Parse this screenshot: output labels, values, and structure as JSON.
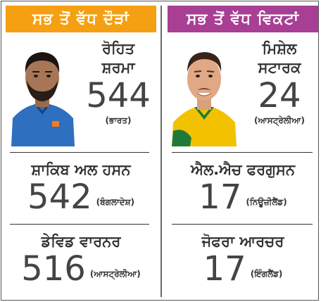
{
  "runs": {
    "header": "ਸਭ ਤੋਂ ਵੱਧ ਦੌੜਾਂ",
    "top": {
      "name_line1": "ਰੋਹਿਤ",
      "name_line2": "ਸ਼ਰਮਾ",
      "value": "544",
      "country": "(ਭਾਰਤ)"
    },
    "second": {
      "name": "ਸ਼ਾਕਿਬ ਅਲ ਹਸਨ",
      "value": "542",
      "country": "(ਬੰਗਲਾਦੇਸ਼)"
    },
    "third": {
      "name": "ਡੇਵਿਡ ਵਾਰਨਰ",
      "value": "516",
      "country": "(ਆਸਟ੍ਰੇਲੀਆ)"
    }
  },
  "wickets": {
    "header": "ਸਭ ਤੋਂ ਵੱਧ ਵਿਕਟਾਂ",
    "top": {
      "name_line1": "ਮਿਸ਼ੇਲ",
      "name_line2": "ਸਟਾਰਕ",
      "value": "24",
      "country": "(ਆਸਟ੍ਰੇਲੀਆ)"
    },
    "second": {
      "name": "ਐਲ.ਐਚ ਫਰਗੁਸਨ",
      "value": "17",
      "country": "(ਨਿਊਜ਼ੀਲੈਂਡ)"
    },
    "third": {
      "name": "ਜੋਫਰਾ ਆਰਚਰ",
      "value": "17",
      "country": "(ਇੰਗਲੈਂਡ)"
    }
  },
  "colors": {
    "runs_header": "#f5a012",
    "wickets_header": "#a83f94",
    "india_jersey": "#2f6fbf",
    "australia_jersey": "#f2c200"
  }
}
